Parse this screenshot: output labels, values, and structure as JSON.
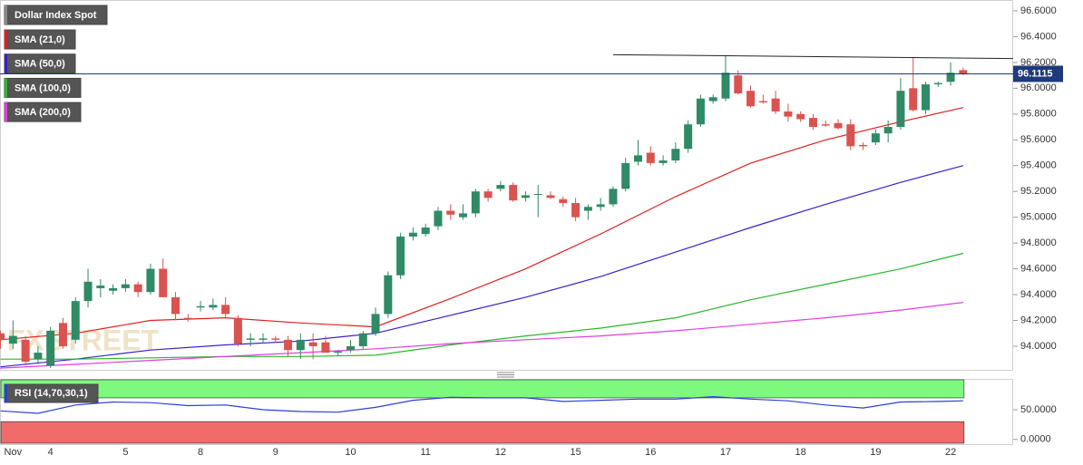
{
  "chart_data": [
    {
      "type": "candlestick",
      "title": "Dollar Index Spot",
      "watermark": "FXSTREET",
      "categories": [
        null,
        "Nov",
        null,
        null,
        "4",
        null,
        null,
        null,
        null,
        null,
        "5",
        null,
        null,
        null,
        null,
        null,
        "8",
        null,
        null,
        null,
        null,
        null,
        "9",
        null,
        null,
        null,
        null,
        null,
        "10",
        null,
        null,
        null,
        null,
        null,
        "11",
        null,
        null,
        null,
        null,
        null,
        "12",
        null,
        null,
        null,
        null,
        null,
        "15",
        null,
        null,
        null,
        null,
        null,
        "16",
        null,
        null,
        null,
        null,
        null,
        "17",
        null,
        null,
        null,
        null,
        null,
        "18",
        null,
        null,
        null,
        null,
        null,
        "19",
        null,
        null,
        null,
        null,
        null,
        "22",
        null
      ],
      "open": [
        94.1,
        94.02,
        94.05,
        93.9,
        93.85,
        94.18,
        94.05,
        94.35,
        94.45,
        94.43,
        94.45,
        94.48,
        94.42,
        94.6,
        94.38,
        94.22,
        94.3,
        94.3,
        94.32,
        94.22,
        94.05,
        94.05,
        94.06,
        94.05,
        93.97,
        94.03,
        94.03,
        93.95,
        93.97,
        94.0,
        94.1,
        94.25,
        94.55,
        94.85,
        94.87,
        94.93,
        95.05,
        95.0,
        95.03,
        95.2,
        95.22,
        95.25,
        95.15,
        95.18,
        95.17,
        95.14,
        95.11,
        95.05,
        95.08,
        95.1,
        95.22,
        95.43,
        95.5,
        95.42,
        95.44,
        95.53,
        95.72,
        95.9,
        95.92,
        96.1,
        95.98,
        95.9,
        95.92,
        95.82,
        95.8,
        95.77,
        95.72,
        95.73,
        95.72,
        95.56,
        95.58,
        95.65,
        95.7,
        96.0,
        95.83,
        96.03,
        96.05,
        96.14
      ],
      "high": [
        94.12,
        94.2,
        94.08,
        94.0,
        94.15,
        94.22,
        94.38,
        94.6,
        94.52,
        94.48,
        94.52,
        94.5,
        94.64,
        94.68,
        94.42,
        94.25,
        94.35,
        94.37,
        94.38,
        94.24,
        94.1,
        94.1,
        94.08,
        94.08,
        94.1,
        94.1,
        94.08,
        93.97,
        94.05,
        94.12,
        94.3,
        94.58,
        94.88,
        94.92,
        94.95,
        95.08,
        95.1,
        95.1,
        95.22,
        95.22,
        95.28,
        95.27,
        95.2,
        95.25,
        95.2,
        95.16,
        95.15,
        95.1,
        95.15,
        95.24,
        95.46,
        95.6,
        95.55,
        95.48,
        95.58,
        95.75,
        95.95,
        95.95,
        96.25,
        96.14,
        96.02,
        95.95,
        95.98,
        95.88,
        95.82,
        95.8,
        95.75,
        95.76,
        95.76,
        95.58,
        95.68,
        95.75,
        96.08,
        96.24,
        96.05,
        96.05,
        96.2,
        96.16
      ],
      "low": [
        93.98,
        93.98,
        93.85,
        93.86,
        93.83,
        93.98,
        94.02,
        94.3,
        94.38,
        94.4,
        94.42,
        94.38,
        94.4,
        94.38,
        94.2,
        94.19,
        94.27,
        94.28,
        94.22,
        94.0,
        94.0,
        94.02,
        94.03,
        93.92,
        93.9,
        93.9,
        93.95,
        93.93,
        93.95,
        93.98,
        94.08,
        94.22,
        94.52,
        94.82,
        94.85,
        94.9,
        94.98,
        94.98,
        95.0,
        95.12,
        95.2,
        95.12,
        95.12,
        95.0,
        95.14,
        95.08,
        94.97,
        94.98,
        95.05,
        95.08,
        95.2,
        95.4,
        95.4,
        95.4,
        95.42,
        95.5,
        95.7,
        95.88,
        95.9,
        95.95,
        95.85,
        95.88,
        95.8,
        95.74,
        95.74,
        95.68,
        95.7,
        95.68,
        95.52,
        95.52,
        95.56,
        95.58,
        95.68,
        95.82,
        95.8,
        96.01,
        96.02,
        96.1
      ],
      "close": [
        94.05,
        94.08,
        93.88,
        93.95,
        94.12,
        94.0,
        94.35,
        94.5,
        94.47,
        94.45,
        94.48,
        94.42,
        94.6,
        94.38,
        94.25,
        94.21,
        94.31,
        94.32,
        94.25,
        94.02,
        94.06,
        94.06,
        94.05,
        93.97,
        94.05,
        94.0,
        93.95,
        93.96,
        94.0,
        94.1,
        94.25,
        94.55,
        94.85,
        94.88,
        94.92,
        95.05,
        95.02,
        95.03,
        95.2,
        95.15,
        95.25,
        95.13,
        95.17,
        95.18,
        95.15,
        95.11,
        95.0,
        95.08,
        95.1,
        95.22,
        95.42,
        95.48,
        95.42,
        95.44,
        95.53,
        95.72,
        95.92,
        95.93,
        96.12,
        95.96,
        95.86,
        95.89,
        95.82,
        95.78,
        95.76,
        95.7,
        95.71,
        95.69,
        95.55,
        95.55,
        95.65,
        95.7,
        95.98,
        95.83,
        96.03,
        96.04,
        96.12,
        96.11
      ],
      "up_color": "#2f8a66",
      "down_color": "#d9534f",
      "lines": [
        {
          "name": "SMA (21,0)",
          "color": "#e02020",
          "x": [
            0,
            6,
            12,
            18,
            24,
            30,
            36,
            42,
            48,
            54,
            60,
            66,
            72,
            77
          ],
          "values": [
            94.05,
            94.1,
            94.2,
            94.22,
            94.18,
            94.15,
            94.37,
            94.6,
            94.87,
            95.16,
            95.42,
            95.6,
            95.74,
            95.85
          ]
        },
        {
          "name": "SMA (50,0)",
          "color": "#3b1ec8",
          "x": [
            0,
            6,
            12,
            18,
            24,
            30,
            36,
            42,
            48,
            54,
            60,
            66,
            72,
            77
          ],
          "values": [
            93.84,
            93.9,
            93.97,
            94.01,
            94.04,
            94.1,
            94.24,
            94.38,
            94.54,
            94.73,
            94.92,
            95.1,
            95.27,
            95.4
          ]
        },
        {
          "name": "SMA (100,0)",
          "color": "#2bb52b",
          "x": [
            0,
            6,
            12,
            18,
            24,
            30,
            36,
            42,
            48,
            54,
            60,
            66,
            72,
            77
          ],
          "values": [
            93.9,
            93.9,
            93.91,
            93.92,
            93.92,
            93.93,
            94.01,
            94.08,
            94.14,
            94.22,
            94.36,
            94.48,
            94.6,
            94.72
          ]
        },
        {
          "name": "SMA (200,0)",
          "color": "#e03ee0",
          "x": [
            0,
            6,
            12,
            18,
            24,
            30,
            36,
            42,
            48,
            54,
            60,
            66,
            72,
            77
          ],
          "values": [
            93.83,
            93.86,
            93.89,
            93.92,
            93.95,
            93.98,
            94.02,
            94.05,
            94.08,
            94.12,
            94.17,
            94.22,
            94.28,
            94.34
          ]
        }
      ],
      "trendline": {
        "x": [
          49,
          81
        ],
        "values": [
          96.26,
          96.23
        ],
        "color": "#222222"
      },
      "last_price": 96.1115,
      "last_price_color": "#1f3a7a",
      "xlim": [
        -0.04,
        81
      ],
      "ylim": [
        93.817,
        96.684
      ],
      "yticks": [
        {
          "value": 94,
          "label": "94.0000"
        },
        {
          "value": 94.2,
          "label": "94.2000"
        },
        {
          "value": 94.4,
          "label": "94.4000"
        },
        {
          "value": 94.6,
          "label": "94.6000"
        },
        {
          "value": 94.8,
          "label": "94.8000"
        },
        {
          "value": 95,
          "label": "95.0000"
        },
        {
          "value": 95.2,
          "label": "95.2000"
        },
        {
          "value": 95.4,
          "label": "95.4000"
        },
        {
          "value": 95.6,
          "label": "95.6000"
        },
        {
          "value": 95.8,
          "label": "95.8000"
        },
        {
          "value": 96,
          "label": "96.0000"
        },
        {
          "value": 96.2,
          "label": "96.2000"
        },
        {
          "value": 96.4,
          "label": "96.4000"
        },
        {
          "value": 96.6,
          "label": "96.6000"
        }
      ],
      "grid": false
    },
    {
      "type": "line",
      "title": "RSI (14,70,30,1)",
      "color": "#2d3fd6",
      "x": [
        0,
        3,
        6,
        9,
        12,
        15,
        18,
        21,
        24,
        27,
        30,
        33,
        36,
        39,
        42,
        45,
        48,
        51,
        54,
        57,
        60,
        63,
        66,
        69,
        72,
        75,
        77
      ],
      "values": [
        48,
        44,
        58,
        63,
        62,
        57,
        58,
        50,
        47,
        46,
        54,
        66,
        71,
        70,
        70,
        64,
        66,
        68,
        68,
        72,
        68,
        65,
        58,
        53,
        63,
        64,
        65
      ],
      "overbought": 70,
      "oversold": 30,
      "overbought_color": "#7dfa7d",
      "oversold_color": "#f26b6b",
      "xlim": [
        -0.04,
        81
      ],
      "ylim": [
        -8,
        102
      ],
      "yticks": [
        {
          "value": 0,
          "label": "0.0000"
        },
        {
          "value": 50,
          "label": "50.0000"
        }
      ]
    }
  ]
}
